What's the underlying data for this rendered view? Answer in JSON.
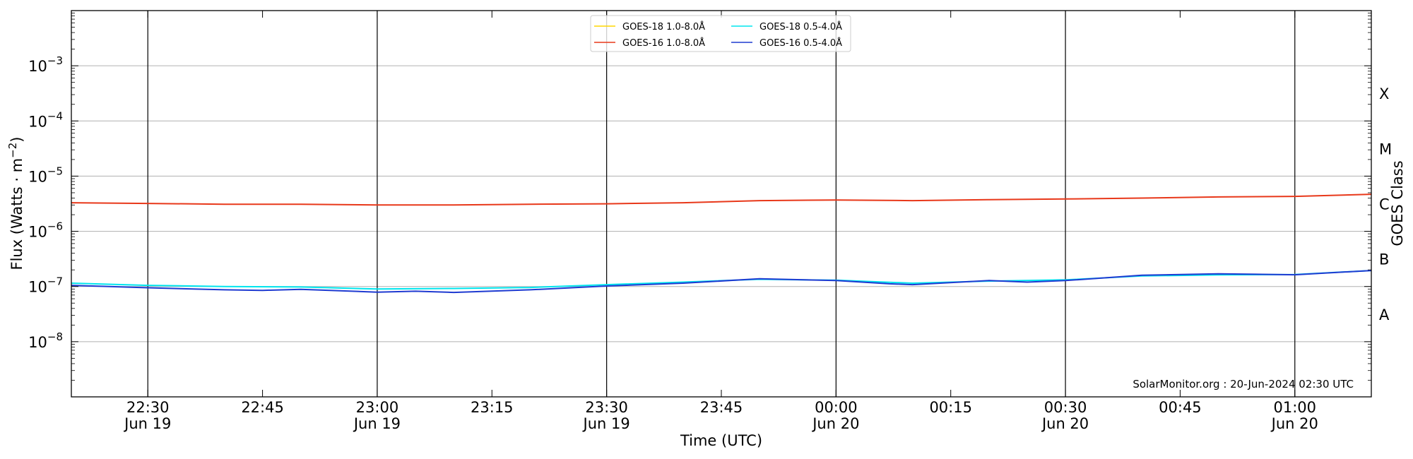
{
  "chart_data": {
    "type": "line",
    "title": "",
    "xlabel": "Time (UTC)",
    "ylabel": "Flux (Watts · m",
    "ylabel_sup": "−2",
    "ylabel_close": ")",
    "y_scale": "log",
    "ylim": [
      1e-09,
      0.01
    ],
    "xlim": [
      "2024-06-19 22:20",
      "2024-06-20 01:10"
    ],
    "grid": "horizontal at decades, vertical at 30-minute marks",
    "legend_position": "top-center",
    "x_ticks": [
      {
        "time": "2024-06-19 22:30",
        "label": "22:30",
        "date": "Jun 19"
      },
      {
        "time": "2024-06-19 22:45",
        "label": "22:45",
        "date": ""
      },
      {
        "time": "2024-06-19 23:00",
        "label": "23:00",
        "date": "Jun 19"
      },
      {
        "time": "2024-06-19 23:15",
        "label": "23:15",
        "date": ""
      },
      {
        "time": "2024-06-19 23:30",
        "label": "23:30",
        "date": "Jun 19"
      },
      {
        "time": "2024-06-19 23:45",
        "label": "23:45",
        "date": ""
      },
      {
        "time": "2024-06-20 00:00",
        "label": "00:00",
        "date": "Jun 20"
      },
      {
        "time": "2024-06-20 00:15",
        "label": "00:15",
        "date": ""
      },
      {
        "time": "2024-06-20 00:30",
        "label": "00:30",
        "date": "Jun 20"
      },
      {
        "time": "2024-06-20 00:45",
        "label": "00:45",
        "date": ""
      },
      {
        "time": "2024-06-20 01:00",
        "label": "01:00",
        "date": "Jun 20"
      }
    ],
    "y_ticks": [
      {
        "value": 0.001,
        "base": "10",
        "exp": "−3"
      },
      {
        "value": 0.0001,
        "base": "10",
        "exp": "−4"
      },
      {
        "value": 1e-05,
        "base": "10",
        "exp": "−5"
      },
      {
        "value": 1e-06,
        "base": "10",
        "exp": "−6"
      },
      {
        "value": 1e-07,
        "base": "10",
        "exp": "−7"
      },
      {
        "value": 1e-08,
        "base": "10",
        "exp": "−8"
      }
    ],
    "right_axis": {
      "label": "GOES Class",
      "classes": [
        {
          "label": "X",
          "value": 0.000316
        },
        {
          "label": "M",
          "value": 3.16e-05
        },
        {
          "label": "C",
          "value": 3.16e-06
        },
        {
          "label": "B",
          "value": 3.16e-07
        },
        {
          "label": "A",
          "value": 3.16e-08
        }
      ]
    },
    "series": [
      {
        "name": "GOES-18 1.0-8.0Å",
        "color": "#ffd700",
        "x": [],
        "y": []
      },
      {
        "name": "GOES-18 0.5-4.0Å",
        "color": "#00e5ee",
        "x": [
          "2024-06-19 22:20",
          "2024-06-19 22:30",
          "2024-06-19 22:40",
          "2024-06-19 22:50",
          "2024-06-19 23:00",
          "2024-06-19 23:10",
          "2024-06-19 23:20",
          "2024-06-19 23:30",
          "2024-06-19 23:40",
          "2024-06-19 23:50",
          "2024-06-20 00:00",
          "2024-06-20 00:10",
          "2024-06-20 00:20",
          "2024-06-20 00:30",
          "2024-06-20 00:40",
          "2024-06-20 00:50",
          "2024-06-20 01:00",
          "2024-06-20 01:10"
        ],
        "y": [
          1.15e-07,
          1.05e-07,
          1e-07,
          9.8e-08,
          9e-08,
          9.2e-08,
          9.6e-08,
          1.08e-07,
          1.2e-07,
          1.35e-07,
          1.3e-07,
          1.15e-07,
          1.25e-07,
          1.32e-07,
          1.55e-07,
          1.62e-07,
          1.65e-07,
          1.95e-07
        ]
      },
      {
        "name": "GOES-16 1.0-8.0Å",
        "color": "#e8381a",
        "x": [
          "2024-06-19 22:20",
          "2024-06-19 22:30",
          "2024-06-19 22:40",
          "2024-06-19 22:50",
          "2024-06-19 23:00",
          "2024-06-19 23:10",
          "2024-06-19 23:20",
          "2024-06-19 23:30",
          "2024-06-19 23:40",
          "2024-06-19 23:50",
          "2024-06-20 00:00",
          "2024-06-20 00:10",
          "2024-06-20 00:20",
          "2024-06-20 00:30",
          "2024-06-20 00:40",
          "2024-06-20 00:50",
          "2024-06-20 01:00",
          "2024-06-20 01:10"
        ],
        "y": [
          3.3e-06,
          3.2e-06,
          3.1e-06,
          3.1e-06,
          3e-06,
          3e-06,
          3.1e-06,
          3.15e-06,
          3.3e-06,
          3.6e-06,
          3.7e-06,
          3.6e-06,
          3.75e-06,
          3.85e-06,
          4e-06,
          4.2e-06,
          4.3e-06,
          4.7e-06
        ]
      },
      {
        "name": "GOES-16 0.5-4.0Å",
        "color": "#1f3bd1",
        "x": [
          "2024-06-19 22:20",
          "2024-06-19 22:30",
          "2024-06-19 22:40",
          "2024-06-19 22:45",
          "2024-06-19 22:50",
          "2024-06-19 23:00",
          "2024-06-19 23:05",
          "2024-06-19 23:10",
          "2024-06-19 23:20",
          "2024-06-19 23:30",
          "2024-06-19 23:40",
          "2024-06-19 23:50",
          "2024-06-20 00:00",
          "2024-06-20 00:07",
          "2024-06-20 00:10",
          "2024-06-20 00:20",
          "2024-06-20 00:25",
          "2024-06-20 00:30",
          "2024-06-20 00:40",
          "2024-06-20 00:50",
          "2024-06-20 01:00",
          "2024-06-20 01:10"
        ],
        "y": [
          1.05e-07,
          9.5e-08,
          8.7e-08,
          8.5e-08,
          8.9e-08,
          7.9e-08,
          8.2e-08,
          7.8e-08,
          8.7e-08,
          1.02e-07,
          1.15e-07,
          1.38e-07,
          1.28e-07,
          1.12e-07,
          1.08e-07,
          1.28e-07,
          1.2e-07,
          1.28e-07,
          1.6e-07,
          1.7e-07,
          1.63e-07,
          1.95e-07
        ]
      }
    ],
    "annotation": "SolarMonitor.org : 20-Jun-2024 02:30 UTC"
  }
}
